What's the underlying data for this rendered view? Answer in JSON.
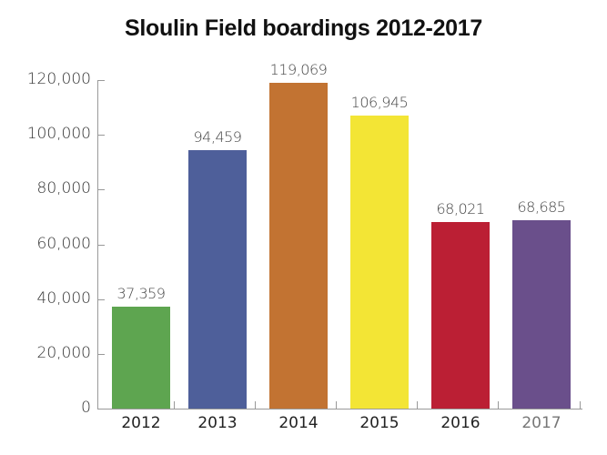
{
  "chart_data": {
    "type": "bar",
    "title": "Sloulin Field boardings 2012-2017",
    "xlabel": "",
    "ylabel": "",
    "categories": [
      "2012",
      "2013",
      "2014",
      "2015",
      "2016",
      "2017"
    ],
    "values": [
      37359,
      94459,
      119069,
      106945,
      68021,
      68685
    ],
    "value_labels": [
      "37,359",
      "94,459",
      "119,069",
      "106,945",
      "68,021",
      "68,685"
    ],
    "colors": [
      "#5ea550",
      "#4e5f9a",
      "#c27332",
      "#f3e535",
      "#bb1f34",
      "#6a4f8b"
    ],
    "ylim": [
      0,
      120000
    ],
    "yticks": [
      "0",
      "20,000",
      "40,000",
      "60,000",
      "80,000",
      "100,000",
      "120,000"
    ],
    "grid": false,
    "legend": null
  }
}
